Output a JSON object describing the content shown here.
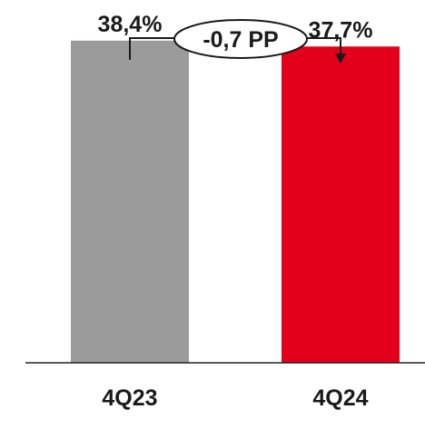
{
  "chart_data": {
    "type": "bar",
    "categories": [
      "4Q23",
      "4Q24"
    ],
    "values": [
      38.4,
      37.7
    ],
    "value_labels": [
      "38,4%",
      "37,7%"
    ],
    "colors": [
      "#9b9b9b",
      "#e2001a"
    ],
    "ylim": [
      0,
      40
    ],
    "grid": false,
    "legend": "none",
    "annotation": {
      "text": "-0,7 PP",
      "from": "4Q23",
      "to": "4Q24"
    }
  }
}
